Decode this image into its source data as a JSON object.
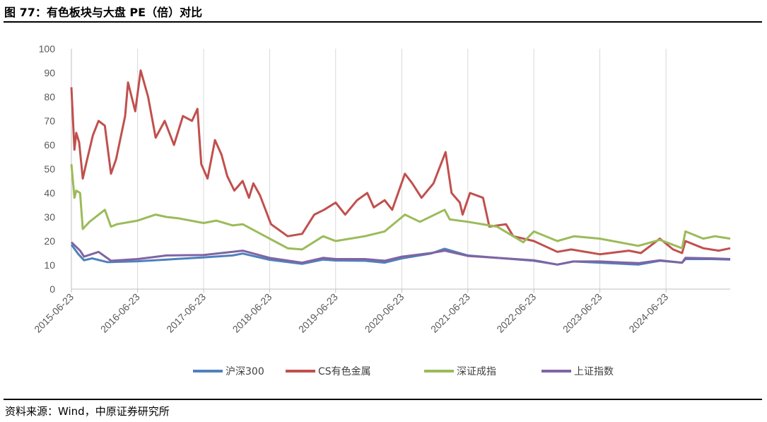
{
  "header": {
    "title": "图 77：有色板块与大盘 PE（倍）对比"
  },
  "footer": {
    "source": "资料来源：Wind，中原证券研究所"
  },
  "chart_data": {
    "type": "line",
    "title": "图 77：有色板块与大盘 PE（倍）对比",
    "xlabel": "",
    "ylabel": "",
    "ylim": [
      0,
      100
    ],
    "yticks": [
      0,
      10,
      20,
      30,
      40,
      50,
      60,
      70,
      80,
      90,
      100
    ],
    "x_range": [
      "2015-06-23",
      "2025-06-13"
    ],
    "x_tick_labels": [
      "2015-06-23",
      "2016-06-23",
      "2017-06-23",
      "2018-06-23",
      "2019-06-23",
      "2020-06-23",
      "2021-06-23",
      "2022-06-23",
      "2023-06-23",
      "2024-06-23"
    ],
    "grid": "vertical",
    "legend": "bottom",
    "series": [
      {
        "name": "沪深300",
        "color": "#4F81BD",
        "points": [
          [
            "2015-06-23",
            18.5
          ],
          [
            "2015-08-01",
            14.5
          ],
          [
            "2015-09-01",
            12.0
          ],
          [
            "2015-10-15",
            12.8
          ],
          [
            "2016-01-10",
            11.2
          ],
          [
            "2016-06-23",
            11.6
          ],
          [
            "2016-12-01",
            12.3
          ],
          [
            "2017-06-23",
            13.2
          ],
          [
            "2017-12-01",
            14.0
          ],
          [
            "2018-01-25",
            14.8
          ],
          [
            "2018-06-23",
            12.2
          ],
          [
            "2018-12-20",
            10.5
          ],
          [
            "2019-04-15",
            12.3
          ],
          [
            "2019-06-23",
            11.9
          ],
          [
            "2019-12-01",
            11.8
          ],
          [
            "2020-03-20",
            11.0
          ],
          [
            "2020-06-23",
            12.8
          ],
          [
            "2020-12-01",
            14.8
          ],
          [
            "2021-02-15",
            16.8
          ],
          [
            "2021-06-23",
            14.0
          ],
          [
            "2021-12-01",
            13.0
          ],
          [
            "2022-06-23",
            11.8
          ],
          [
            "2022-10-31",
            10.2
          ],
          [
            "2023-01-28",
            11.5
          ],
          [
            "2023-06-23",
            11.0
          ],
          [
            "2024-01-22",
            10.2
          ],
          [
            "2024-05-20",
            11.8
          ],
          [
            "2024-09-20",
            11.0
          ],
          [
            "2024-10-08",
            12.5
          ],
          [
            "2025-03-01",
            12.5
          ],
          [
            "2025-06-13",
            12.3
          ]
        ]
      },
      {
        "name": "CS有色金属",
        "color": "#C0504D",
        "points": [
          [
            "2015-06-23",
            84.0
          ],
          [
            "2015-07-10",
            58.0
          ],
          [
            "2015-07-20",
            65.0
          ],
          [
            "2015-08-05",
            61.0
          ],
          [
            "2015-08-25",
            46.0
          ],
          [
            "2015-09-15",
            53.0
          ],
          [
            "2015-10-20",
            64.0
          ],
          [
            "2015-11-20",
            70.0
          ],
          [
            "2015-12-25",
            68.0
          ],
          [
            "2016-01-28",
            48.0
          ],
          [
            "2016-02-25",
            54.0
          ],
          [
            "2016-04-15",
            72.0
          ],
          [
            "2016-05-01",
            86.0
          ],
          [
            "2016-06-10",
            74.0
          ],
          [
            "2016-07-10",
            91.0
          ],
          [
            "2016-08-20",
            80.0
          ],
          [
            "2016-10-01",
            63.0
          ],
          [
            "2016-11-20",
            70.0
          ],
          [
            "2017-01-10",
            60.0
          ],
          [
            "2017-03-01",
            72.0
          ],
          [
            "2017-04-20",
            70.0
          ],
          [
            "2017-05-20",
            75.0
          ],
          [
            "2017-06-10",
            52.0
          ],
          [
            "2017-07-15",
            46.0
          ],
          [
            "2017-08-25",
            62.0
          ],
          [
            "2017-09-30",
            56.0
          ],
          [
            "2017-11-01",
            47.0
          ],
          [
            "2017-12-10",
            41.0
          ],
          [
            "2018-01-25",
            45.0
          ],
          [
            "2018-03-01",
            38.0
          ],
          [
            "2018-03-25",
            44.0
          ],
          [
            "2018-05-01",
            39.0
          ],
          [
            "2018-07-01",
            27.0
          ],
          [
            "2018-10-01",
            22.0
          ],
          [
            "2018-12-20",
            23.0
          ],
          [
            "2019-02-25",
            31.0
          ],
          [
            "2019-04-20",
            33.0
          ],
          [
            "2019-06-23",
            36.0
          ],
          [
            "2019-08-15",
            31.0
          ],
          [
            "2019-10-20",
            37.0
          ],
          [
            "2019-12-15",
            40.0
          ],
          [
            "2020-01-20",
            34.0
          ],
          [
            "2020-03-20",
            37.0
          ],
          [
            "2020-05-01",
            33.0
          ],
          [
            "2020-07-10",
            48.0
          ],
          [
            "2020-08-20",
            44.0
          ],
          [
            "2020-10-10",
            38.0
          ],
          [
            "2020-12-15",
            44.0
          ],
          [
            "2021-02-20",
            57.0
          ],
          [
            "2021-03-25",
            40.0
          ],
          [
            "2021-05-10",
            36.0
          ],
          [
            "2021-05-25",
            31.0
          ],
          [
            "2021-07-05",
            40.0
          ],
          [
            "2021-09-15",
            38.0
          ],
          [
            "2021-10-20",
            26.0
          ],
          [
            "2022-01-20",
            27.0
          ],
          [
            "2022-03-01",
            22.0
          ],
          [
            "2022-06-23",
            20.0
          ],
          [
            "2022-10-31",
            15.5
          ],
          [
            "2023-01-15",
            16.5
          ],
          [
            "2023-06-23",
            14.5
          ],
          [
            "2023-12-01",
            16.0
          ],
          [
            "2024-02-05",
            15.0
          ],
          [
            "2024-05-20",
            21.0
          ],
          [
            "2024-08-01",
            16.5
          ],
          [
            "2024-09-20",
            15.0
          ],
          [
            "2024-10-08",
            20.0
          ],
          [
            "2025-01-15",
            17.0
          ],
          [
            "2025-04-10",
            16.0
          ],
          [
            "2025-06-13",
            17.0
          ]
        ]
      },
      {
        "name": "深证成指",
        "color": "#9BBB59",
        "points": [
          [
            "2015-06-23",
            52.0
          ],
          [
            "2015-07-10",
            38.0
          ],
          [
            "2015-07-20",
            41.0
          ],
          [
            "2015-08-10",
            40.0
          ],
          [
            "2015-08-25",
            25.0
          ],
          [
            "2015-10-01",
            28.0
          ],
          [
            "2015-12-25",
            33.0
          ],
          [
            "2016-01-28",
            26.0
          ],
          [
            "2016-03-01",
            27.0
          ],
          [
            "2016-06-23",
            28.5
          ],
          [
            "2016-10-01",
            31.0
          ],
          [
            "2016-12-01",
            30.0
          ],
          [
            "2017-02-01",
            29.5
          ],
          [
            "2017-06-23",
            27.5
          ],
          [
            "2017-09-01",
            28.5
          ],
          [
            "2017-12-01",
            26.5
          ],
          [
            "2018-01-25",
            27.0
          ],
          [
            "2018-06-23",
            21.0
          ],
          [
            "2018-10-01",
            17.0
          ],
          [
            "2018-12-20",
            16.5
          ],
          [
            "2019-04-15",
            22.0
          ],
          [
            "2019-06-23",
            20.0
          ],
          [
            "2019-12-01",
            22.0
          ],
          [
            "2020-03-20",
            24.0
          ],
          [
            "2020-07-10",
            31.0
          ],
          [
            "2020-10-01",
            28.0
          ],
          [
            "2021-02-15",
            33.0
          ],
          [
            "2021-03-15",
            29.0
          ],
          [
            "2021-06-23",
            28.0
          ],
          [
            "2021-12-01",
            26.0
          ],
          [
            "2022-04-26",
            19.5
          ],
          [
            "2022-06-23",
            24.0
          ],
          [
            "2022-10-31",
            20.0
          ],
          [
            "2023-02-01",
            22.0
          ],
          [
            "2023-06-23",
            21.0
          ],
          [
            "2024-01-22",
            18.0
          ],
          [
            "2024-05-20",
            20.5
          ],
          [
            "2024-09-20",
            17.0
          ],
          [
            "2024-10-08",
            24.0
          ],
          [
            "2025-01-15",
            21.0
          ],
          [
            "2025-03-20",
            22.0
          ],
          [
            "2025-06-13",
            21.0
          ]
        ]
      },
      {
        "name": "上证指数",
        "color": "#8064A2",
        "points": [
          [
            "2015-06-23",
            19.5
          ],
          [
            "2015-08-10",
            16.0
          ],
          [
            "2015-09-01",
            13.5
          ],
          [
            "2015-11-20",
            15.5
          ],
          [
            "2016-01-28",
            11.8
          ],
          [
            "2016-06-23",
            12.5
          ],
          [
            "2016-12-01",
            14.0
          ],
          [
            "2017-06-23",
            14.2
          ],
          [
            "2017-12-01",
            15.5
          ],
          [
            "2018-01-25",
            16.0
          ],
          [
            "2018-06-23",
            13.0
          ],
          [
            "2018-12-20",
            11.0
          ],
          [
            "2019-04-15",
            13.0
          ],
          [
            "2019-06-23",
            12.5
          ],
          [
            "2019-12-01",
            12.5
          ],
          [
            "2020-03-20",
            11.8
          ],
          [
            "2020-06-23",
            13.5
          ],
          [
            "2020-12-01",
            15.0
          ],
          [
            "2021-02-15",
            16.0
          ],
          [
            "2021-06-23",
            13.8
          ],
          [
            "2021-12-01",
            13.0
          ],
          [
            "2022-06-23",
            12.0
          ],
          [
            "2022-10-31",
            10.2
          ],
          [
            "2023-01-28",
            11.5
          ],
          [
            "2023-06-23",
            11.5
          ],
          [
            "2024-01-22",
            10.8
          ],
          [
            "2024-05-20",
            12.0
          ],
          [
            "2024-09-20",
            11.0
          ],
          [
            "2024-10-08",
            13.0
          ],
          [
            "2025-03-01",
            12.8
          ],
          [
            "2025-06-13",
            12.5
          ]
        ]
      }
    ]
  }
}
